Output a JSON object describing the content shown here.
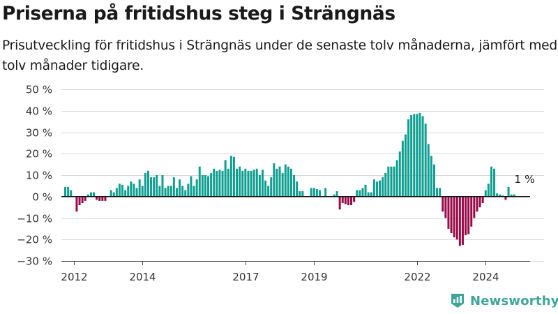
{
  "title": "Priserna på fritidshus steg i Strängnäs",
  "subtitle": "Prisutveckling för fritidshus i Strängnäs under de senaste tolv månaderna, jämfört med tolv månader tidigare.",
  "brand": {
    "name": "Newsworthy",
    "icon": "newsworthy-logo-icon"
  },
  "colors": {
    "positive": "#0f9f91",
    "negative": "#990a48",
    "grid": "#d9d9d9",
    "zero_line": "#111111",
    "brand": "#3ea59a"
  },
  "chart_data": {
    "type": "bar",
    "frequency": "monthly",
    "start": "2011-10",
    "annotation": {
      "text": "1 %",
      "at": "2025-01"
    },
    "y_ticks": [
      "50 %",
      "40 %",
      "30 %",
      "20 %",
      "10 %",
      "0 %",
      "−10 %",
      "−20 %",
      "−30 %"
    ],
    "y_tick_values": [
      50,
      40,
      30,
      20,
      10,
      0,
      -10,
      -20,
      -30
    ],
    "x_ticks": [
      "2012",
      "2014",
      "2017",
      "2019",
      "2022",
      "2024"
    ],
    "x_tick_dates": [
      "2012-01",
      "2014-01",
      "2017-01",
      "2019-01",
      "2022-01",
      "2024-01"
    ],
    "ylim": [
      -30,
      50
    ],
    "grid": true,
    "unit": "%",
    "values": [
      4.5,
      4.5,
      3.0,
      null,
      -7.0,
      -4.0,
      -3.0,
      -2.0,
      1.0,
      2.0,
      2.0,
      -1.5,
      -2.0,
      -2.0,
      -2.0,
      null,
      3.0,
      2.0,
      4.0,
      6.0,
      5.5,
      3.0,
      5.0,
      7.0,
      6.0,
      4.0,
      8.0,
      5.0,
      11.0,
      12.0,
      9.0,
      9.0,
      10.0,
      5.0,
      10.0,
      4.0,
      5.0,
      5.0,
      9.0,
      4.0,
      8.0,
      5.0,
      3.0,
      6.0,
      9.5,
      5.0,
      8.0,
      14.0,
      10.0,
      10.0,
      9.5,
      11.0,
      13.0,
      12.0,
      12.5,
      12.0,
      17.0,
      13.0,
      19.0,
      18.5,
      13.0,
      14.0,
      12.0,
      13.0,
      12.0,
      12.0,
      12.5,
      13.0,
      10.0,
      12.5,
      7.5,
      5.0,
      9.0,
      15.5,
      13.0,
      14.0,
      11.0,
      15.0,
      14.0,
      13.0,
      10.0,
      7.0,
      2.5,
      2.5,
      null,
      null,
      4.0,
      4.0,
      3.5,
      3.0,
      null,
      4.0,
      null,
      null,
      1.0,
      2.5,
      -6.0,
      -3.0,
      -3.5,
      -4.0,
      -4.0,
      -2.5,
      3.0,
      3.0,
      4.0,
      5.5,
      2.0,
      2.0,
      8.0,
      7.0,
      7.5,
      9.0,
      11.0,
      14.0,
      14.0,
      14.0,
      17.0,
      21.0,
      26.0,
      29.0,
      36.0,
      38.0,
      38.5,
      38.5,
      39.0,
      37.5,
      34.0,
      24.5,
      19.0,
      15.0,
      4.0,
      4.0,
      -7.0,
      -10.0,
      -15.0,
      -17.0,
      -19.0,
      -20.0,
      -23.0,
      -22.5,
      -18.0,
      -17.5,
      -14.0,
      -10.0,
      -7.0,
      -5.0,
      -3.0,
      3.0,
      6.0,
      14.0,
      13.0,
      1.5,
      1.0,
      0.5,
      -1.5,
      4.5,
      1.0,
      1.0,
      null,
      null
    ]
  }
}
